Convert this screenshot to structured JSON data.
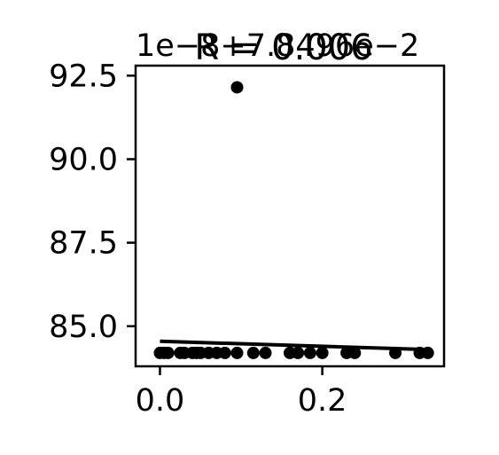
{
  "chart_data": {
    "type": "scatter",
    "title": "R = 0.006",
    "x_offset_label": "1e−8+7.8496e−2",
    "xlim": [
      -0.03,
      0.35
    ],
    "ylim": [
      83.8,
      92.8
    ],
    "x_ticks": [
      {
        "value": 0.0,
        "label": "0.0"
      },
      {
        "value": 0.2,
        "label": "0.2"
      }
    ],
    "y_ticks": [
      {
        "value": 85.0,
        "label": "85.0"
      },
      {
        "value": 87.5,
        "label": "87.5"
      },
      {
        "value": 90.0,
        "label": "90.0"
      },
      {
        "value": 92.5,
        "label": "92.5"
      }
    ],
    "points": [
      {
        "x": 0.0,
        "y": 84.2
      },
      {
        "x": 0.005,
        "y": 84.2
      },
      {
        "x": 0.01,
        "y": 84.2
      },
      {
        "x": 0.025,
        "y": 84.2
      },
      {
        "x": 0.03,
        "y": 84.2
      },
      {
        "x": 0.04,
        "y": 84.2
      },
      {
        "x": 0.045,
        "y": 84.2
      },
      {
        "x": 0.05,
        "y": 84.2
      },
      {
        "x": 0.06,
        "y": 84.2
      },
      {
        "x": 0.07,
        "y": 84.2
      },
      {
        "x": 0.08,
        "y": 84.2
      },
      {
        "x": 0.095,
        "y": 84.2
      },
      {
        "x": 0.095,
        "y": 92.15
      },
      {
        "x": 0.115,
        "y": 84.2
      },
      {
        "x": 0.13,
        "y": 84.2
      },
      {
        "x": 0.16,
        "y": 84.2
      },
      {
        "x": 0.17,
        "y": 84.2
      },
      {
        "x": 0.185,
        "y": 84.2
      },
      {
        "x": 0.2,
        "y": 84.2
      },
      {
        "x": 0.23,
        "y": 84.2
      },
      {
        "x": 0.24,
        "y": 84.2
      },
      {
        "x": 0.29,
        "y": 84.2
      },
      {
        "x": 0.32,
        "y": 84.2
      },
      {
        "x": 0.33,
        "y": 84.2
      }
    ],
    "fit_line": [
      {
        "x": 0.0,
        "y": 84.55
      },
      {
        "x": 0.33,
        "y": 84.3
      }
    ],
    "grid": false,
    "colors": {
      "points": "#000000",
      "line": "#000000",
      "axes": "#000000",
      "background": "#ffffff"
    }
  }
}
